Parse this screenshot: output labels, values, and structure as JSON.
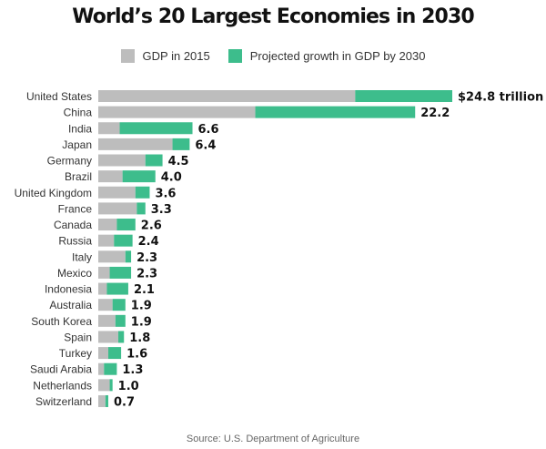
{
  "chart_data": {
    "type": "bar",
    "orientation": "horizontal",
    "stacked": true,
    "title": "World’s 20 Largest Economies in 2030",
    "source": "Source: U.S. Department of Agriculture",
    "colors": {
      "gdp_2015": "#bdbdbd",
      "growth": "#3dbd8c"
    },
    "categories": [
      "United States",
      "China",
      "India",
      "Japan",
      "Germany",
      "Brazil",
      "United Kingdom",
      "France",
      "Canada",
      "Russia",
      "Italy",
      "Mexico",
      "Indonesia",
      "Australia",
      "South Korea",
      "Spain",
      "Turkey",
      "Saudi Arabia",
      "Netherlands",
      "Switzerland"
    ],
    "series": [
      {
        "name": "GDP in 2015",
        "values": [
          18.0,
          11.0,
          1.5,
          5.2,
          3.3,
          1.7,
          2.6,
          2.7,
          1.3,
          1.1,
          1.9,
          0.8,
          0.6,
          1.0,
          1.2,
          1.4,
          0.7,
          0.4,
          0.8,
          0.5
        ]
      },
      {
        "name": "Projected growth in GDP by 2030",
        "values": [
          6.8,
          11.2,
          5.1,
          1.2,
          1.2,
          2.3,
          1.0,
          0.6,
          1.3,
          1.3,
          0.4,
          1.5,
          1.5,
          0.9,
          0.7,
          0.4,
          0.9,
          0.9,
          0.2,
          0.2
        ]
      }
    ],
    "labels": [
      "$24.8 trillion",
      "22.2",
      "6.6",
      "6.4",
      "4.5",
      "4.0",
      "3.6",
      "3.3",
      "2.6",
      "2.4",
      "2.3",
      "2.3",
      "2.1",
      "1.9",
      "1.9",
      "1.8",
      "1.6",
      "1.3",
      "1.0",
      "0.7"
    ],
    "totals": [
      24.8,
      22.2,
      6.6,
      6.4,
      4.5,
      4.0,
      3.6,
      3.3,
      2.6,
      2.4,
      2.3,
      2.3,
      2.1,
      1.9,
      1.9,
      1.8,
      1.6,
      1.3,
      1.0,
      0.7
    ],
    "xlim": [
      0,
      24.8
    ],
    "grid": false,
    "legend_position": "top-center"
  }
}
